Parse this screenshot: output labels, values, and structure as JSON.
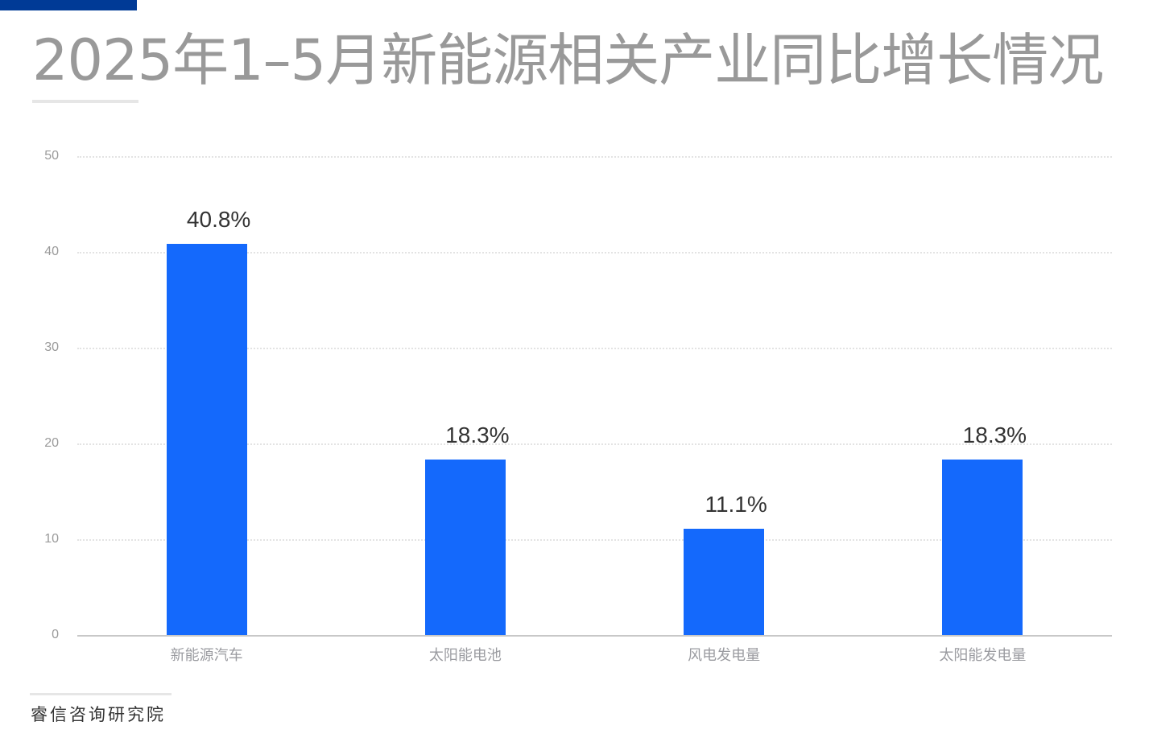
{
  "header": {
    "title": "2025年1–5月新能源相关产业同比增长情况",
    "accent_color": "#003a96"
  },
  "footer": {
    "source": "睿信咨询研究院"
  },
  "chart_data": {
    "type": "bar",
    "title": "2025年1–5月新能源相关产业同比增长情况",
    "xlabel": "",
    "ylabel": "",
    "categories": [
      "新能源汽车",
      "太阳能电池",
      "风电发电量",
      "太阳能发电量"
    ],
    "values": [
      40.8,
      18.3,
      11.1,
      18.3
    ],
    "value_labels": [
      "40.8%",
      "18.3%",
      "11.1%",
      "18.3%"
    ],
    "ylim": [
      0,
      50
    ],
    "yticks": [
      0,
      10,
      20,
      30,
      40,
      50
    ],
    "grid": true,
    "legend": null,
    "bar_color": "#1469fc"
  }
}
